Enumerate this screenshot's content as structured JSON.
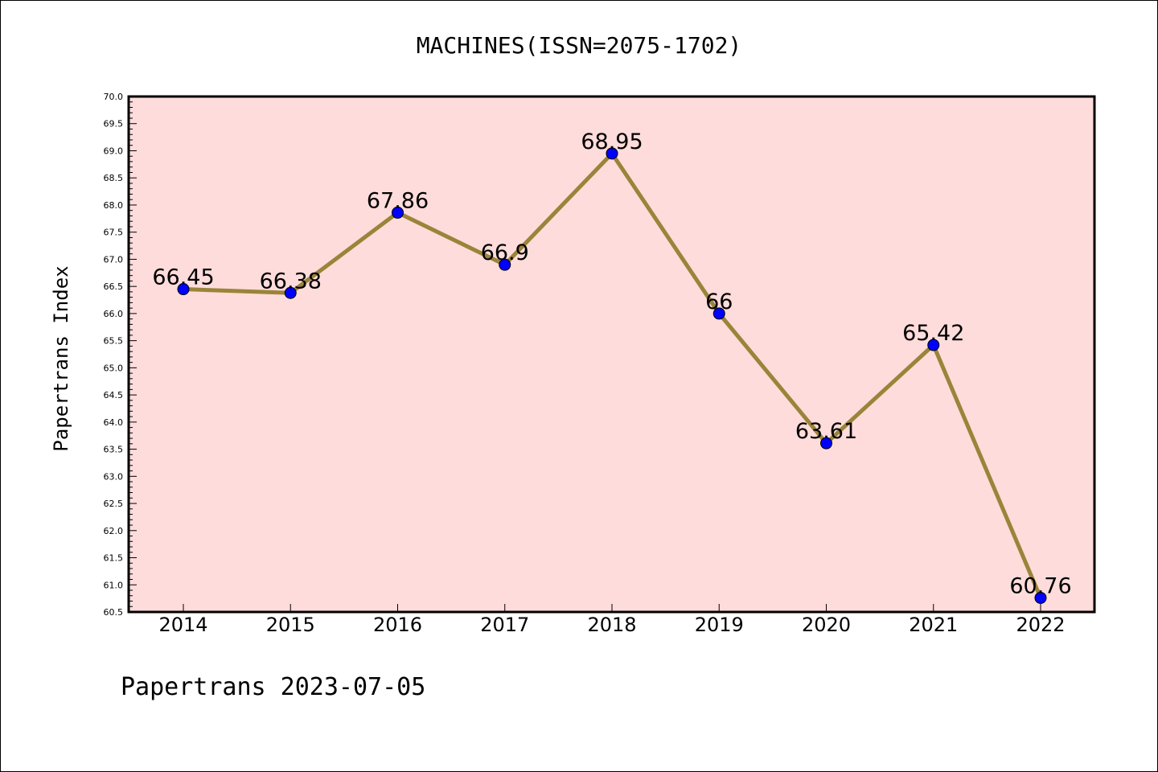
{
  "chart_data": {
    "type": "line",
    "title": "MACHINES(ISSN=2075-1702)",
    "ylabel": "Papertrans Index",
    "xlabel": "",
    "footer": "Papertrans 2023-07-05",
    "categories": [
      "2014",
      "2015",
      "2016",
      "2017",
      "2018",
      "2019",
      "2020",
      "2021",
      "2022"
    ],
    "series": [
      {
        "values": [
          66.45,
          66.38,
          67.86,
          66.9,
          68.95,
          66,
          63.61,
          65.42,
          60.76
        ],
        "labels": [
          "66.45",
          "66.38",
          "67.86",
          "66.9",
          "68.95",
          "66",
          "63.61",
          "65.42",
          "60.76"
        ]
      }
    ],
    "ylim": [
      60.5,
      70.0
    ],
    "yticks": [
      "60.5",
      "61.0",
      "61.5",
      "62.0",
      "62.5",
      "63.0",
      "63.5",
      "64.0",
      "64.5",
      "65.0",
      "65.5",
      "66.0",
      "66.5",
      "67.0",
      "67.5",
      "68.0",
      "68.5",
      "69.0",
      "69.5",
      "70.0"
    ],
    "grid": false,
    "colors": {
      "plot_background": "#fddcdb",
      "line": "#9a8439",
      "marker": "#0000ff"
    }
  }
}
